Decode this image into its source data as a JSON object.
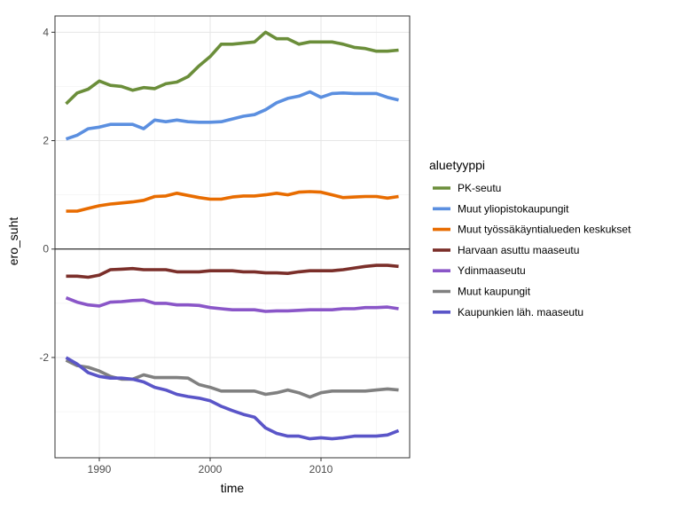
{
  "chart_data": {
    "type": "line",
    "xlabel": "time",
    "ylabel": "ero_suht",
    "xlim": [
      1986,
      2018
    ],
    "ylim": [
      -3.85,
      4.3
    ],
    "x_ticks": [
      1990,
      2000,
      2010
    ],
    "y_ticks": [
      -2,
      0,
      2,
      4
    ],
    "y_tick_labels": [
      "-2",
      "0",
      "2",
      "4"
    ],
    "reference_line_y": 0,
    "grid": true,
    "legend": {
      "title": "aluetyyppi",
      "position": "right"
    },
    "x": [
      1987,
      1988,
      1989,
      1990,
      1991,
      1992,
      1993,
      1994,
      1995,
      1996,
      1997,
      1998,
      1999,
      2000,
      2001,
      2002,
      2003,
      2004,
      2005,
      2006,
      2007,
      2008,
      2009,
      2010,
      2011,
      2012,
      2013,
      2014,
      2015,
      2016,
      2017
    ],
    "series": [
      {
        "name": "PK-seutu",
        "color": "#6b8e3a",
        "values": [
          2.68,
          2.88,
          2.95,
          3.1,
          3.02,
          3.0,
          2.93,
          2.98,
          2.96,
          3.05,
          3.08,
          3.18,
          3.38,
          3.55,
          3.78,
          3.78,
          3.8,
          3.82,
          4.0,
          3.88,
          3.88,
          3.78,
          3.82,
          3.82,
          3.82,
          3.78,
          3.72,
          3.7,
          3.65,
          3.65,
          3.67
        ]
      },
      {
        "name": "Muut yliopistokaupungit",
        "color": "#5b8fe0",
        "values": [
          2.03,
          2.1,
          2.22,
          2.25,
          2.3,
          2.3,
          2.3,
          2.22,
          2.38,
          2.35,
          2.38,
          2.35,
          2.34,
          2.34,
          2.35,
          2.4,
          2.45,
          2.48,
          2.57,
          2.7,
          2.78,
          2.82,
          2.9,
          2.8,
          2.87,
          2.88,
          2.87,
          2.87,
          2.87,
          2.8,
          2.75
        ]
      },
      {
        "name": "Muut työssäkäyntialueden keskukset",
        "color": "#e86c00",
        "values": [
          0.7,
          0.7,
          0.75,
          0.8,
          0.83,
          0.85,
          0.87,
          0.9,
          0.97,
          0.98,
          1.03,
          0.99,
          0.95,
          0.92,
          0.92,
          0.96,
          0.98,
          0.98,
          1.0,
          1.03,
          1.0,
          1.05,
          1.06,
          1.05,
          1.0,
          0.95,
          0.96,
          0.97,
          0.97,
          0.94,
          0.97
        ]
      },
      {
        "name": "Harvaan asuttu maaseutu",
        "color": "#7b2f2a",
        "values": [
          -0.5,
          -0.5,
          -0.52,
          -0.48,
          -0.38,
          -0.37,
          -0.36,
          -0.38,
          -0.38,
          -0.38,
          -0.42,
          -0.42,
          -0.42,
          -0.4,
          -0.4,
          -0.4,
          -0.42,
          -0.42,
          -0.44,
          -0.44,
          -0.45,
          -0.42,
          -0.4,
          -0.4,
          -0.4,
          -0.38,
          -0.35,
          -0.32,
          -0.3,
          -0.3,
          -0.32
        ]
      },
      {
        "name": "Ydinmaaseutu",
        "color": "#8a56c8",
        "values": [
          -0.9,
          -0.98,
          -1.03,
          -1.05,
          -0.98,
          -0.97,
          -0.95,
          -0.94,
          -1.0,
          -1.0,
          -1.03,
          -1.03,
          -1.04,
          -1.08,
          -1.1,
          -1.12,
          -1.12,
          -1.12,
          -1.15,
          -1.14,
          -1.14,
          -1.13,
          -1.12,
          -1.12,
          -1.12,
          -1.1,
          -1.1,
          -1.08,
          -1.08,
          -1.07,
          -1.1
        ]
      },
      {
        "name": "Muut kaupungit",
        "color": "#808080",
        "values": [
          -2.05,
          -2.15,
          -2.18,
          -2.25,
          -2.35,
          -2.4,
          -2.4,
          -2.32,
          -2.37,
          -2.37,
          -2.37,
          -2.38,
          -2.5,
          -2.55,
          -2.62,
          -2.62,
          -2.62,
          -2.62,
          -2.68,
          -2.65,
          -2.6,
          -2.65,
          -2.73,
          -2.65,
          -2.62,
          -2.62,
          -2.62,
          -2.62,
          -2.6,
          -2.58,
          -2.6
        ]
      },
      {
        "name": "Kaupunkien läh. maaseutu",
        "color": "#5a55c8",
        "values": [
          -2.0,
          -2.12,
          -2.28,
          -2.35,
          -2.38,
          -2.38,
          -2.4,
          -2.45,
          -2.55,
          -2.6,
          -2.68,
          -2.72,
          -2.75,
          -2.8,
          -2.9,
          -2.98,
          -3.05,
          -3.1,
          -3.3,
          -3.4,
          -3.45,
          -3.45,
          -3.5,
          -3.48,
          -3.5,
          -3.48,
          -3.45,
          -3.45,
          -3.45,
          -3.43,
          -3.35
        ]
      }
    ]
  }
}
